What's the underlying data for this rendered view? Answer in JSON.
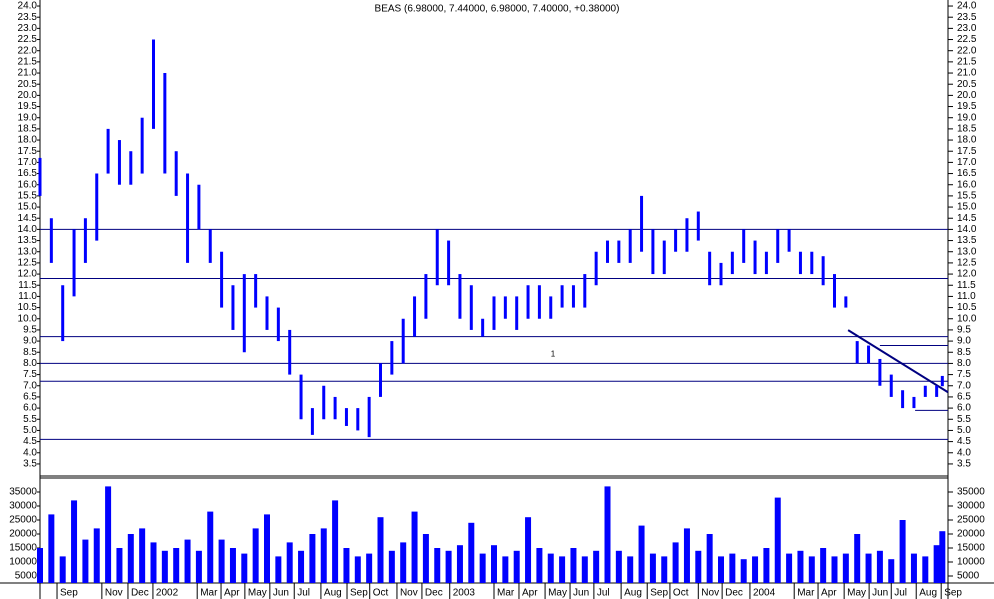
{
  "chart_data": [
    {
      "type": "hlc",
      "title": "BEAS (6.98000, 7.44000, 6.98000, 7.40000, +0.38000)",
      "x": [
        0,
        2,
        4,
        6,
        8,
        10,
        12,
        14,
        16,
        18,
        20,
        22,
        24,
        26,
        28,
        30,
        32,
        34,
        36,
        38,
        40,
        42,
        44,
        46,
        48,
        50,
        52,
        54,
        56,
        58,
        60,
        62,
        64,
        66,
        68,
        70,
        72,
        74,
        76,
        78,
        80,
        82,
        84,
        86,
        88,
        90,
        92,
        94,
        96,
        98,
        100,
        102,
        104,
        106,
        108,
        110,
        112,
        114,
        116,
        118,
        120,
        122,
        124,
        126,
        128,
        130,
        132,
        134,
        136,
        138,
        140,
        142,
        144,
        146,
        148,
        150,
        152,
        154,
        156,
        158,
        159
      ],
      "high": [
        17.2,
        14.5,
        11.5,
        14.0,
        14.5,
        16.5,
        18.5,
        18.0,
        17.5,
        19.0,
        22.5,
        21.0,
        17.5,
        16.5,
        16.0,
        14.0,
        13.0,
        11.5,
        12.0,
        12.0,
        11.0,
        10.5,
        9.5,
        7.5,
        6.0,
        7.0,
        6.5,
        6.0,
        6.0,
        6.5,
        8.0,
        9.0,
        10.0,
        11.0,
        12.0,
        14.0,
        13.5,
        12.0,
        11.5,
        10.0,
        11.0,
        11.0,
        11.0,
        11.5,
        11.5,
        11.0,
        11.5,
        11.5,
        12.0,
        13.0,
        13.5,
        13.5,
        14.0,
        15.5,
        14.0,
        13.5,
        14.0,
        14.5,
        14.8,
        13.0,
        12.5,
        13.0,
        14.0,
        13.5,
        13.0,
        14.0,
        14.0,
        13.0,
        13.0,
        12.8,
        12.0,
        11.0,
        9.0,
        8.8,
        8.2,
        7.5,
        6.8,
        6.5,
        7.0,
        7.0,
        7.44
      ],
      "low": [
        15.5,
        12.5,
        9.0,
        11.0,
        12.5,
        13.5,
        16.5,
        16.0,
        16.0,
        16.5,
        18.5,
        16.5,
        15.5,
        12.5,
        14.0,
        12.5,
        10.5,
        9.5,
        8.5,
        10.5,
        9.5,
        9.0,
        7.5,
        5.5,
        4.8,
        5.5,
        5.5,
        5.2,
        5.0,
        4.7,
        6.5,
        7.5,
        8.0,
        9.2,
        10.0,
        11.5,
        11.5,
        10.0,
        9.5,
        9.2,
        9.5,
        10.0,
        9.5,
        10.0,
        10.0,
        10.0,
        10.5,
        10.5,
        10.5,
        11.5,
        12.5,
        12.5,
        12.5,
        13.0,
        12.0,
        12.0,
        13.0,
        13.0,
        13.5,
        11.5,
        11.5,
        12.0,
        12.5,
        12.0,
        12.0,
        12.5,
        13.0,
        12.0,
        12.0,
        11.5,
        10.5,
        10.5,
        8.0,
        8.0,
        7.0,
        6.5,
        6.0,
        6.0,
        6.5,
        6.5,
        6.98
      ],
      "color": "#0000ff",
      "line_color": "#000080",
      "xlim": [
        0,
        160
      ],
      "xticks": [
        {
          "value": 3.0,
          "label": "Sep"
        },
        {
          "value": 10.9,
          "label": "Nov"
        },
        {
          "value": 15.5,
          "label": "Dec"
        },
        {
          "value": 19.9,
          "label": "2002"
        },
        {
          "value": 27.7,
          "label": "Mar"
        },
        {
          "value": 31.9,
          "label": "Apr"
        },
        {
          "value": 36.1,
          "label": "May"
        },
        {
          "value": 40.5,
          "label": "Jun"
        },
        {
          "value": 44.8,
          "label": "Jul"
        },
        {
          "value": 49.5,
          "label": "Aug"
        },
        {
          "value": 54.1,
          "label": "Sep"
        },
        {
          "value": 58.1,
          "label": "Oct"
        },
        {
          "value": 62.9,
          "label": "Nov"
        },
        {
          "value": 67.3,
          "label": "Dec"
        },
        {
          "value": 72.2,
          "label": "2003"
        },
        {
          "value": 80.0,
          "label": "Mar"
        },
        {
          "value": 84.4,
          "label": "Apr"
        },
        {
          "value": 89.0,
          "label": "May"
        },
        {
          "value": 93.4,
          "label": "Jun"
        },
        {
          "value": 97.6,
          "label": "Jul"
        },
        {
          "value": 102.4,
          "label": "Aug"
        },
        {
          "value": 107.0,
          "label": "Sep"
        },
        {
          "value": 111.0,
          "label": "Oct"
        },
        {
          "value": 116.0,
          "label": "Nov"
        },
        {
          "value": 120.2,
          "label": "Dec"
        },
        {
          "value": 125.1,
          "label": "2004"
        },
        {
          "value": 132.9,
          "label": "Mar"
        },
        {
          "value": 137.1,
          "label": "Apr"
        },
        {
          "value": 141.7,
          "label": "May"
        },
        {
          "value": 146.1,
          "label": "Jun"
        },
        {
          "value": 150.0,
          "label": "Jul"
        },
        {
          "value": 154.4,
          "label": "Aug"
        },
        {
          "value": 158.8,
          "label": "Sep"
        }
      ],
      "ylim": [
        2.96,
        24.27
      ],
      "yticks": [
        {
          "value": 24,
          "label": "24.0"
        },
        23.5,
        {
          "value": 23,
          "label": "23.0"
        },
        22.5,
        {
          "value": 22,
          "label": "22.0"
        },
        21.5,
        {
          "value": 21,
          "label": "21.0"
        },
        20.5,
        {
          "value": 20,
          "label": "20.0"
        },
        19.5,
        {
          "value": 19,
          "label": "19.0"
        },
        18.5,
        {
          "value": 18,
          "label": "18.0"
        },
        17.5,
        {
          "value": 17,
          "label": "17.0"
        },
        16.5,
        {
          "value": 16,
          "label": "16.0"
        },
        15.5,
        {
          "value": 15,
          "label": "15.0"
        },
        14.5,
        {
          "value": 14,
          "label": "14.0"
        },
        13.5,
        {
          "value": 13,
          "label": "13.0"
        },
        12.5,
        {
          "value": 12,
          "label": "12.0"
        },
        11.5,
        {
          "value": 11,
          "label": "11.0"
        },
        10.5,
        {
          "value": 10,
          "label": "10.0"
        },
        9.5,
        {
          "value": 9,
          "label": "9.0"
        },
        8.5,
        {
          "value": 8,
          "label": "8.0"
        },
        7.5,
        {
          "value": 7,
          "label": "7.0"
        },
        6.5,
        {
          "value": 6,
          "label": "6.0"
        },
        5.5,
        {
          "value": 5,
          "label": "5.0"
        },
        4.5,
        {
          "value": 4,
          "label": "4.0"
        },
        3.5
      ],
      "hlines": [
        14.0,
        11.8,
        9.2,
        8.0,
        7.2,
        4.6
      ],
      "segments": [
        {
          "x": [
            142.4,
            160
          ],
          "y": [
            9.49,
            6.71
          ]
        },
        {
          "x": [
            148,
            160
          ],
          "y": [
            8.8,
            8.8
          ]
        },
        {
          "x": [
            154.2,
            160
          ],
          "y": [
            5.9,
            5.9
          ]
        }
      ],
      "annotations": [
        {
          "text": "1",
          "x": 90.4,
          "y": 8.4
        }
      ]
    },
    {
      "type": "bar",
      "x": [
        0,
        2,
        4,
        6,
        8,
        10,
        12,
        14,
        16,
        18,
        20,
        22,
        24,
        26,
        28,
        30,
        32,
        34,
        36,
        38,
        40,
        42,
        44,
        46,
        48,
        50,
        52,
        54,
        56,
        58,
        60,
        62,
        64,
        66,
        68,
        70,
        72,
        74,
        76,
        78,
        80,
        82,
        84,
        86,
        88,
        90,
        92,
        94,
        96,
        98,
        100,
        102,
        104,
        106,
        108,
        110,
        112,
        114,
        116,
        118,
        120,
        122,
        124,
        126,
        128,
        130,
        132,
        134,
        136,
        138,
        140,
        142,
        144,
        146,
        148,
        150,
        152,
        154,
        156,
        158,
        159
      ],
      "values": [
        15000,
        27000,
        12000,
        32000,
        18000,
        22000,
        37000,
        15000,
        20000,
        22000,
        17000,
        14000,
        15000,
        18000,
        14000,
        28000,
        18000,
        15000,
        13000,
        22000,
        27000,
        12000,
        17000,
        14000,
        20000,
        22000,
        32000,
        15000,
        12000,
        13000,
        26000,
        14000,
        17000,
        28000,
        20000,
        15000,
        14000,
        16000,
        24000,
        13000,
        16000,
        12000,
        14000,
        26000,
        15000,
        13000,
        12000,
        15000,
        12000,
        14000,
        37000,
        14000,
        12000,
        23000,
        13000,
        12000,
        17000,
        22000,
        14000,
        20000,
        12000,
        13000,
        11000,
        12000,
        15000,
        33000,
        13000,
        14000,
        12000,
        15000,
        12000,
        13000,
        20000,
        13000,
        14000,
        11000,
        25000,
        13000,
        12000,
        16000,
        21000
      ],
      "color": "#0000ff",
      "xlim": [
        0,
        160
      ],
      "ylim": [
        2500,
        40000
      ],
      "yticks": [
        35000,
        30000,
        25000,
        20000,
        15000,
        10000,
        5000
      ]
    }
  ]
}
